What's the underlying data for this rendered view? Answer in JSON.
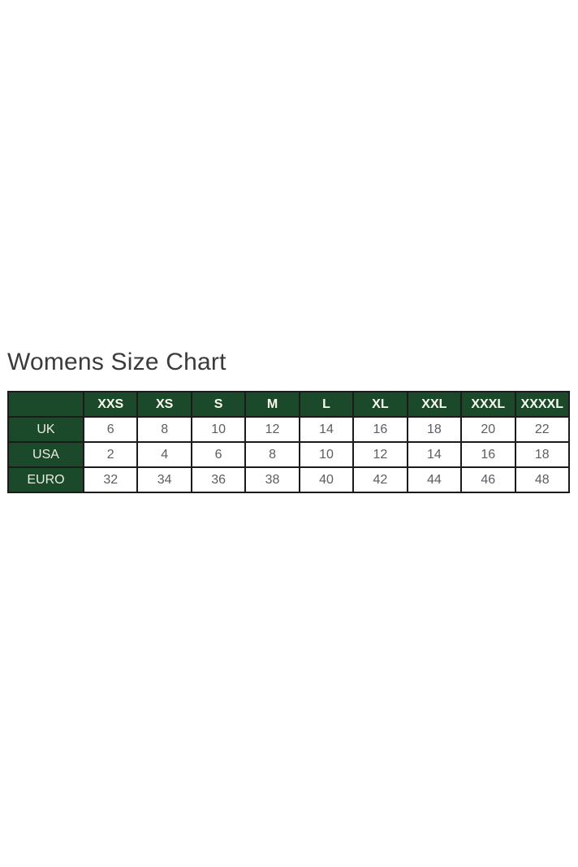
{
  "page": {
    "title": "Womens Size Chart"
  },
  "colors": {
    "header_green": "#1a4a29",
    "border": "#1b1b1b",
    "title_text": "#3b3b3b",
    "cell_text": "#595e64",
    "header_text": "#fbfaf2"
  },
  "table": {
    "column_headers": [
      "",
      "XXS",
      "XS",
      "S",
      "M",
      "L",
      "XL",
      "XXL",
      "XXXL",
      "XXXXL"
    ],
    "rows": [
      {
        "label": "UK",
        "values": [
          "6",
          "8",
          "10",
          "12",
          "14",
          "16",
          "18",
          "20",
          "22"
        ]
      },
      {
        "label": "USA",
        "values": [
          "2",
          "4",
          "6",
          "8",
          "10",
          "12",
          "14",
          "16",
          "18"
        ]
      },
      {
        "label": "EURO",
        "values": [
          "32",
          "34",
          "36",
          "38",
          "40",
          "42",
          "44",
          "46",
          "48"
        ]
      }
    ]
  },
  "chart_data": {
    "type": "table",
    "title": "Womens Size Chart",
    "columns": [
      "XXS",
      "XS",
      "S",
      "M",
      "L",
      "XL",
      "XXL",
      "XXXL",
      "XXXXL"
    ],
    "rows": [
      {
        "label": "UK",
        "values": [
          6,
          8,
          10,
          12,
          14,
          16,
          18,
          20,
          22
        ]
      },
      {
        "label": "USA",
        "values": [
          2,
          4,
          6,
          8,
          10,
          12,
          14,
          16,
          18
        ]
      },
      {
        "label": "EURO",
        "values": [
          32,
          34,
          36,
          38,
          40,
          42,
          44,
          46,
          48
        ]
      }
    ],
    "layout": {
      "header_fill": "#1a4a29",
      "header_text_color": "#ffffff",
      "grid": true
    }
  }
}
